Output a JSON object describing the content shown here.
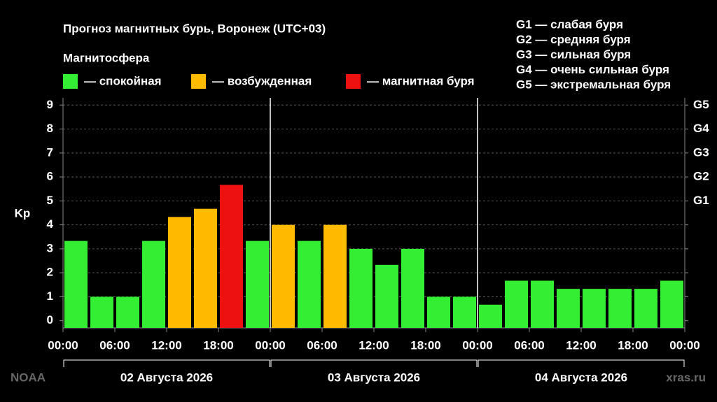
{
  "chart_data": {
    "type": "bar",
    "title": "Прогноз магнитных бурь, Воронеж (UTC+03)",
    "subtitle": "Магнитосфера",
    "ylabel": "Kp",
    "legend": [
      {
        "label": "— спокойная",
        "color": "#33ee33"
      },
      {
        "label": "— возбужденная",
        "color": "#ffbb00"
      },
      {
        "label": "— магнитная буря",
        "color": "#ee1111"
      }
    ],
    "g_scale": [
      "G1 — слабая буря",
      "G2 — средняя буря",
      "G3 — сильная буря",
      "G4 — очень сильная буря",
      "G5 — экстремальная буря"
    ],
    "x": [
      0,
      3,
      6,
      9,
      12,
      15,
      18,
      21,
      24,
      27,
      30,
      33,
      36,
      39,
      42,
      45,
      48,
      51,
      54,
      57,
      60,
      63,
      66,
      69
    ],
    "bar_span": 3,
    "values": [
      3.33,
      1,
      1,
      3.33,
      4.33,
      4.67,
      5.67,
      3.33,
      4,
      3.33,
      4,
      3,
      2.33,
      3,
      1,
      1,
      0.67,
      1.67,
      1.67,
      1.33,
      1.33,
      1.33,
      1.33,
      1.67
    ],
    "colors": [
      "#33ee33",
      "#33ee33",
      "#33ee33",
      "#33ee33",
      "#ffbb00",
      "#ffbb00",
      "#ee1111",
      "#33ee33",
      "#ffbb00",
      "#33ee33",
      "#ffbb00",
      "#33ee33",
      "#33ee33",
      "#33ee33",
      "#33ee33",
      "#33ee33",
      "#33ee33",
      "#33ee33",
      "#33ee33",
      "#33ee33",
      "#33ee33",
      "#33ee33",
      "#33ee33",
      "#33ee33"
    ],
    "xlim": [
      0,
      72
    ],
    "ylim": [
      -0.3,
      9.3
    ],
    "xticks": [
      {
        "value": 0,
        "label": "00:00"
      },
      {
        "value": 6,
        "label": "06:00"
      },
      {
        "value": 12,
        "label": "12:00"
      },
      {
        "value": 18,
        "label": "18:00"
      },
      {
        "value": 24,
        "label": "00:00"
      },
      {
        "value": 30,
        "label": "06:00"
      },
      {
        "value": 36,
        "label": "12:00"
      },
      {
        "value": 42,
        "label": "18:00"
      },
      {
        "value": 48,
        "label": "00:00"
      },
      {
        "value": 54,
        "label": "06:00"
      },
      {
        "value": 60,
        "label": "12:00"
      },
      {
        "value": 66,
        "label": "18:00"
      },
      {
        "value": 72,
        "label": "00:00"
      }
    ],
    "yticks": [
      0,
      1,
      2,
      3,
      4,
      5,
      6,
      7,
      8,
      9
    ],
    "y2ticks": [
      {
        "value": 5,
        "label": "G1"
      },
      {
        "value": 6,
        "label": "G2"
      },
      {
        "value": 7,
        "label": "G3"
      },
      {
        "value": 8,
        "label": "G4"
      },
      {
        "value": 9,
        "label": "G5"
      }
    ],
    "days": [
      {
        "label": "02 Августа 2026",
        "range": [
          0,
          24
        ]
      },
      {
        "label": "03 Августа 2026",
        "range": [
          24,
          48
        ]
      },
      {
        "label": "04 Августа 2026",
        "range": [
          48,
          72
        ]
      }
    ],
    "grid": true,
    "source_left": "NOAA",
    "source_right": "xras.ru"
  }
}
